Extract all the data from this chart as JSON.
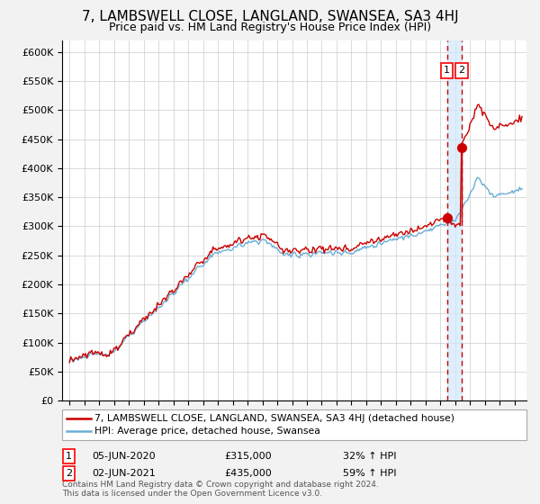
{
  "title": "7, LAMBSWELL CLOSE, LANGLAND, SWANSEA, SA3 4HJ",
  "subtitle": "Price paid vs. HM Land Registry's House Price Index (HPI)",
  "yticks": [
    0,
    50000,
    100000,
    150000,
    200000,
    250000,
    300000,
    350000,
    400000,
    450000,
    500000,
    550000,
    600000
  ],
  "ytick_labels": [
    "£0",
    "£50K",
    "£100K",
    "£150K",
    "£200K",
    "£250K",
    "£300K",
    "£350K",
    "£400K",
    "£450K",
    "£500K",
    "£550K",
    "£600K"
  ],
  "hpi_color": "#6baed6",
  "price_color": "#cc0000",
  "sale1_year": 2020.44,
  "sale2_year": 2021.44,
  "sale1_price": 315000,
  "sale2_price": 435000,
  "sale1": {
    "label": "1",
    "date": "05-JUN-2020",
    "price": "£315,000",
    "pct": "32%",
    "dir": "↑"
  },
  "sale2": {
    "label": "2",
    "date": "02-JUN-2021",
    "price": "£435,000",
    "pct": "59%",
    "dir": "↑"
  },
  "legend_line1": "7, LAMBSWELL CLOSE, LANGLAND, SWANSEA, SA3 4HJ (detached house)",
  "legend_line2": "HPI: Average price, detached house, Swansea",
  "footer": "Contains HM Land Registry data © Crown copyright and database right 2024.\nThis data is licensed under the Open Government Licence v3.0.",
  "background_color": "#f2f2f2",
  "plot_bg": "#ffffff",
  "title_fontsize": 11,
  "subtitle_fontsize": 9,
  "tick_fontsize": 8
}
